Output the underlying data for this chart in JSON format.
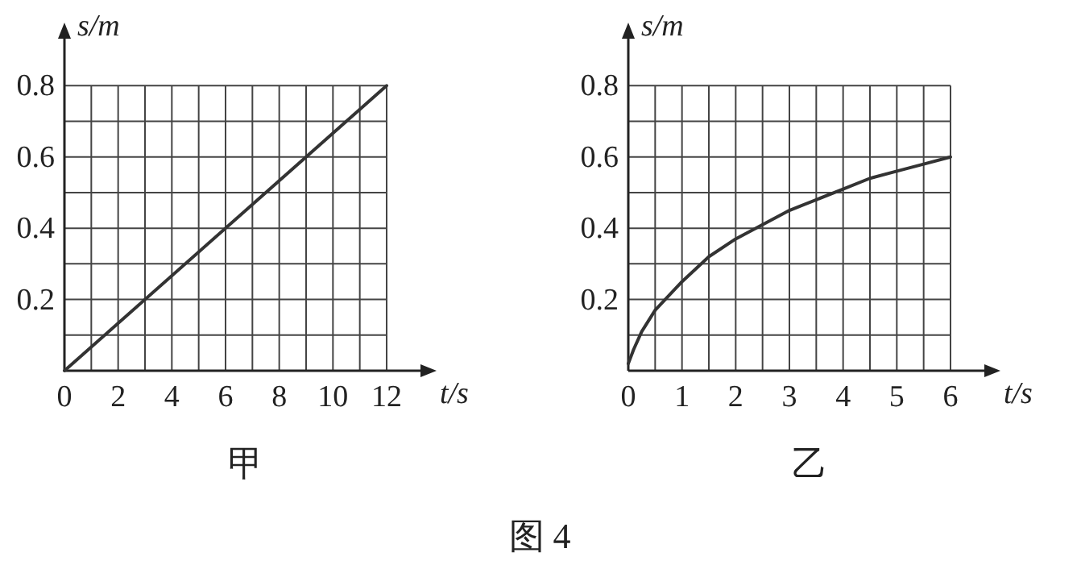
{
  "chart_data": [
    {
      "type": "line",
      "title": "甲",
      "xlabel": "t/s",
      "ylabel": "s/m",
      "xlim": [
        0,
        13.5
      ],
      "ylim": [
        0,
        0.95
      ],
      "xticks": [
        0,
        {
          "value": 1,
          "label": null
        },
        2,
        {
          "value": 3,
          "label": null
        },
        4,
        {
          "value": 5,
          "label": null
        },
        6,
        {
          "value": 7,
          "label": null
        },
        8,
        {
          "value": 9,
          "label": null
        },
        10,
        {
          "value": 11,
          "label": null
        },
        12
      ],
      "yticks": [
        {
          "value": 0.1,
          "label": null
        },
        0.2,
        {
          "value": 0.3,
          "label": null
        },
        0.4,
        {
          "value": 0.5,
          "label": null
        },
        0.6,
        {
          "value": 0.7,
          "label": null
        },
        0.8
      ],
      "grid": true,
      "marker": "none",
      "color": "#333333",
      "x": [
        0,
        12
      ],
      "values": [
        0,
        0.8
      ]
    },
    {
      "type": "line",
      "title": "乙",
      "xlabel": "t/s",
      "ylabel": "s/m",
      "xlim": [
        0,
        6.75
      ],
      "ylim": [
        0,
        0.95
      ],
      "xticks": [
        0,
        {
          "value": 0.5,
          "label": null
        },
        1,
        {
          "value": 1.5,
          "label": null
        },
        2,
        {
          "value": 2.5,
          "label": null
        },
        3,
        {
          "value": 3.5,
          "label": null
        },
        4,
        {
          "value": 4.5,
          "label": null
        },
        5,
        {
          "value": 5.5,
          "label": null
        },
        6
      ],
      "yticks": [
        {
          "value": 0.1,
          "label": null
        },
        0.2,
        {
          "value": 0.3,
          "label": null
        },
        0.4,
        {
          "value": 0.5,
          "label": null
        },
        0.6,
        {
          "value": 0.7,
          "label": null
        },
        0.8
      ],
      "grid": true,
      "marker": "none",
      "color": "#333333",
      "x": [
        0,
        0.1,
        0.25,
        0.5,
        1,
        1.5,
        2,
        2.5,
        3,
        3.5,
        4,
        4.5,
        5,
        5.5,
        6
      ],
      "values": [
        0.02,
        0.06,
        0.11,
        0.17,
        0.25,
        0.32,
        0.37,
        0.41,
        0.45,
        0.48,
        0.51,
        0.54,
        0.56,
        0.58,
        0.6
      ],
      "annotations": [
        "图 4"
      ]
    }
  ]
}
